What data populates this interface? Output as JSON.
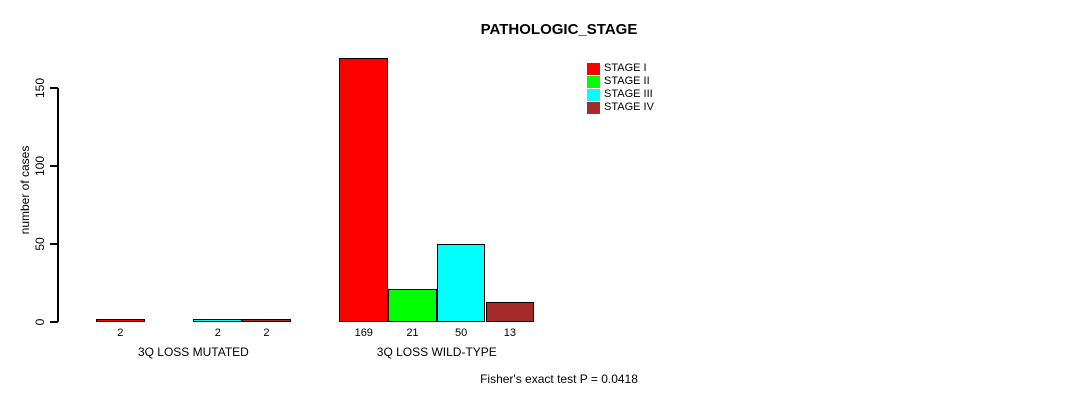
{
  "chart_data": {
    "type": "bar",
    "title": "PATHOLOGIC_STAGE",
    "ylabel": "number of cases",
    "xlabel": "",
    "yticks": [
      0,
      50,
      100,
      150
    ],
    "ylim": [
      0,
      172
    ],
    "grid": false,
    "legend_position": "top-right",
    "categories": [
      "3Q LOSS MUTATED",
      "3Q LOSS WILD-TYPE"
    ],
    "series": [
      {
        "name": "STAGE I",
        "color": "#ff0000",
        "values": [
          2,
          169
        ]
      },
      {
        "name": "STAGE II",
        "color": "#00ff00",
        "values": [
          0,
          21
        ]
      },
      {
        "name": "STAGE III",
        "color": "#00ffff",
        "values": [
          2,
          50
        ]
      },
      {
        "name": "STAGE IV",
        "color": "#a52a2a",
        "values": [
          2,
          13
        ]
      }
    ],
    "bar_value_labels": {
      "group_1": [
        "2",
        null,
        "2",
        "2"
      ],
      "group_2": [
        "169",
        "21",
        "50",
        "13"
      ],
      "show_zero_labels": false
    },
    "annotation": "Fisher's exact test P = 0.0418"
  }
}
